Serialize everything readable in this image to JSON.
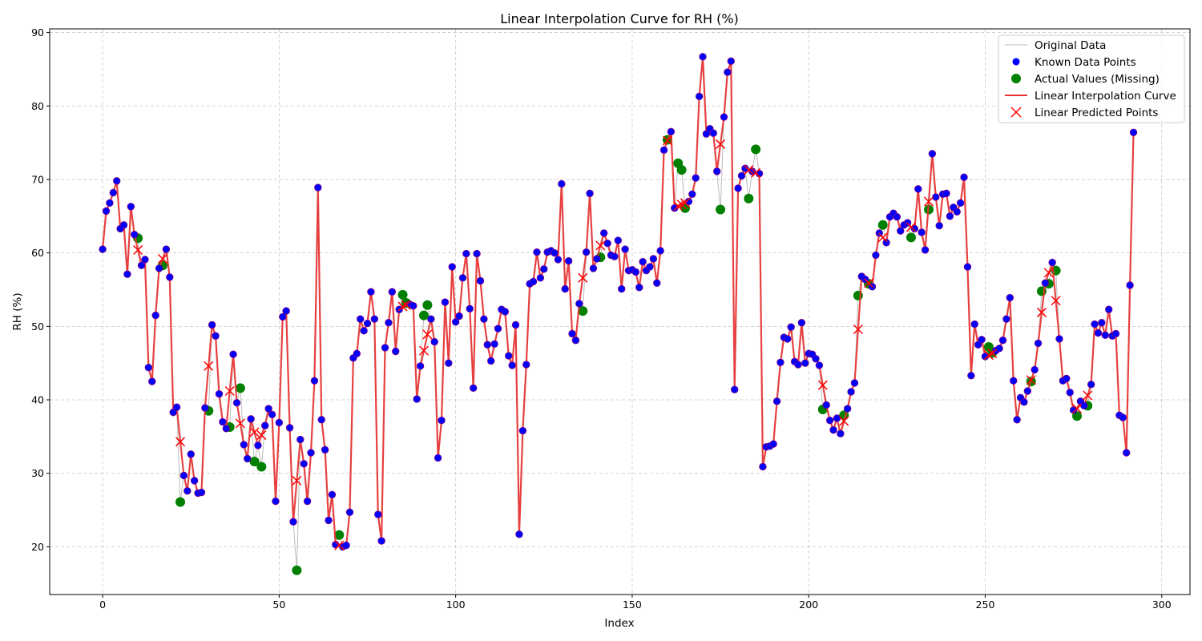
{
  "chart_data": {
    "type": "line",
    "title": "Linear Interpolation Curve for RH (%)",
    "xlabel": "Index",
    "ylabel": "RH (%)",
    "xlim": [
      -15,
      308
    ],
    "ylim": [
      13.5,
      90.5
    ],
    "xticks": [
      0,
      50,
      100,
      150,
      200,
      250,
      300
    ],
    "yticks": [
      20,
      30,
      40,
      50,
      60,
      70,
      80,
      90
    ],
    "grid": true,
    "legend_position": "top-right",
    "colors": {
      "original": "#bbbbbb",
      "known": "#0000ff",
      "known_edge": "#800080",
      "actual_missing": "#008000",
      "interp_line": "#e83030",
      "predicted": "#ff0000"
    },
    "legend": [
      {
        "key": "original",
        "label": "Original Data"
      },
      {
        "key": "known",
        "label": "Known Data Points"
      },
      {
        "key": "actual",
        "label": "Actual Values (Missing)"
      },
      {
        "key": "interp",
        "label": "Linear Interpolation Curve"
      },
      {
        "key": "predicted",
        "label": "Linear Predicted Points"
      }
    ],
    "x_start": 0,
    "original_values": [
      60.5,
      65.7,
      66.8,
      68.2,
      69.8,
      63.3,
      63.8,
      57.1,
      66.3,
      62.5,
      62.0,
      58.3,
      59.1,
      44.4,
      42.5,
      51.5,
      57.9,
      58.3,
      60.5,
      56.7,
      38.3,
      39.0,
      26.1,
      29.7,
      27.6,
      32.6,
      29.0,
      27.3,
      27.4,
      38.9,
      38.5,
      50.2,
      48.7,
      40.8,
      37.0,
      36.1,
      36.3,
      46.2,
      39.6,
      41.6,
      33.9,
      32.0,
      37.4,
      31.6,
      33.8,
      30.9,
      36.5,
      38.8,
      38.0,
      26.2,
      36.9,
      51.3,
      52.1,
      36.2,
      23.4,
      16.8,
      34.6,
      31.3,
      26.2,
      32.8,
      42.6,
      68.9,
      37.3,
      33.2,
      23.6,
      27.1,
      20.3,
      21.6,
      20.0,
      20.2,
      24.7,
      45.7,
      46.3,
      51.0,
      49.4,
      50.4,
      54.7,
      51.0,
      24.4,
      20.8,
      47.1,
      50.5,
      54.7,
      46.6,
      52.3,
      54.3,
      53.2,
      53.0,
      52.8,
      40.1,
      44.6,
      51.5,
      52.9,
      51.0,
      47.9,
      32.1,
      37.2,
      53.3,
      45.0,
      58.1,
      50.6,
      51.4,
      56.6,
      59.9,
      52.4,
      41.6,
      59.9,
      56.2,
      51.0,
      47.5,
      45.3,
      47.6,
      49.7,
      52.3,
      52.0,
      46.0,
      44.7,
      50.2,
      21.7,
      35.8,
      44.8,
      55.8,
      56.1,
      60.1,
      56.6,
      57.8,
      60.1,
      60.3,
      60.0,
      59.1,
      69.4,
      55.1,
      58.9,
      49.0,
      48.1,
      53.1,
      52.1,
      60.1,
      68.1,
      57.9,
      59.2,
      59.4,
      62.7,
      61.3,
      59.7,
      59.5,
      61.7,
      55.1,
      60.5,
      57.6,
      57.7,
      57.4,
      55.3,
      58.8,
      57.6,
      58.1,
      59.2,
      55.9,
      60.3,
      74.0,
      75.4,
      76.5,
      66.1,
      72.2,
      71.3,
      66.1,
      67.0,
      68.0,
      70.2,
      81.3,
      86.7,
      76.2,
      76.9,
      76.3,
      71.1,
      65.9,
      78.5,
      84.6,
      86.1,
      41.4,
      68.8,
      70.5,
      71.5,
      67.4,
      71.1,
      74.1,
      70.8,
      30.9,
      33.6,
      33.7,
      34.0,
      39.8,
      45.1,
      48.5,
      48.3,
      49.9,
      45.2,
      44.8,
      50.5,
      45.0,
      46.3,
      46.2,
      45.6,
      44.7,
      38.7,
      39.3,
      37.2,
      35.9,
      37.5,
      35.4,
      37.9,
      38.8,
      41.1,
      42.3,
      54.2,
      56.8,
      56.4,
      55.8,
      55.4,
      59.7,
      62.7,
      63.8,
      61.4,
      64.9,
      65.4,
      64.9,
      63.0,
      63.8,
      64.1,
      62.1,
      63.3,
      68.7,
      62.8,
      60.4,
      65.9,
      73.5,
      67.6,
      63.7,
      68.0,
      68.1,
      65.0,
      66.2,
      65.6,
      66.8,
      70.3,
      58.1,
      43.3,
      50.3,
      47.5,
      48.2,
      45.9,
      47.2,
      46.4,
      46.7,
      47.0,
      48.1,
      51.0,
      53.9,
      42.6,
      37.3,
      40.3,
      39.7,
      41.2,
      42.5,
      44.1,
      47.7,
      54.8,
      55.9,
      55.8,
      58.7,
      57.6,
      48.3,
      42.6,
      42.9,
      41.0,
      38.6,
      37.8,
      39.8,
      39.2,
      39.2,
      42.1,
      50.3,
      49.1,
      50.5,
      48.8,
      52.3,
      48.7,
      49.0,
      37.9,
      37.6,
      32.8,
      55.6,
      76.4
    ],
    "missing_indices": [
      10,
      17,
      22,
      30,
      36,
      39,
      43,
      45,
      55,
      67,
      85,
      86,
      91,
      92,
      136,
      141,
      160,
      163,
      164,
      165,
      175,
      183,
      185,
      204,
      210,
      214,
      217,
      221,
      229,
      234,
      251,
      252,
      263,
      266,
      268,
      270,
      276,
      279
    ],
    "predicted_values": {
      "10": 60.4,
      "17": 59.2,
      "22": 34.3,
      "30": 44.6,
      "36": 41.2,
      "39": 36.8,
      "43": 35.6,
      "45": 35.2,
      "55": 29.0,
      "67": 20.2,
      "85": 52.7,
      "86": 52.9,
      "91": 46.7,
      "92": 48.9,
      "136": 56.6,
      "141": 61.0,
      "160": 75.3,
      "163": 66.4,
      "164": 66.6,
      "165": 66.8,
      "175": 74.8,
      "183": 71.3,
      "185": 70.9,
      "204": 42.0,
      "210": 37.1,
      "214": 49.6,
      "217": 55.9,
      "221": 62.1,
      "229": 63.5,
      "234": 67.0,
      "251": 46.1,
      "252": 46.3,
      "263": 42.7,
      "266": 51.9,
      "268": 57.3,
      "270": 53.5,
      "276": 38.8,
      "279": 40.6
    }
  }
}
